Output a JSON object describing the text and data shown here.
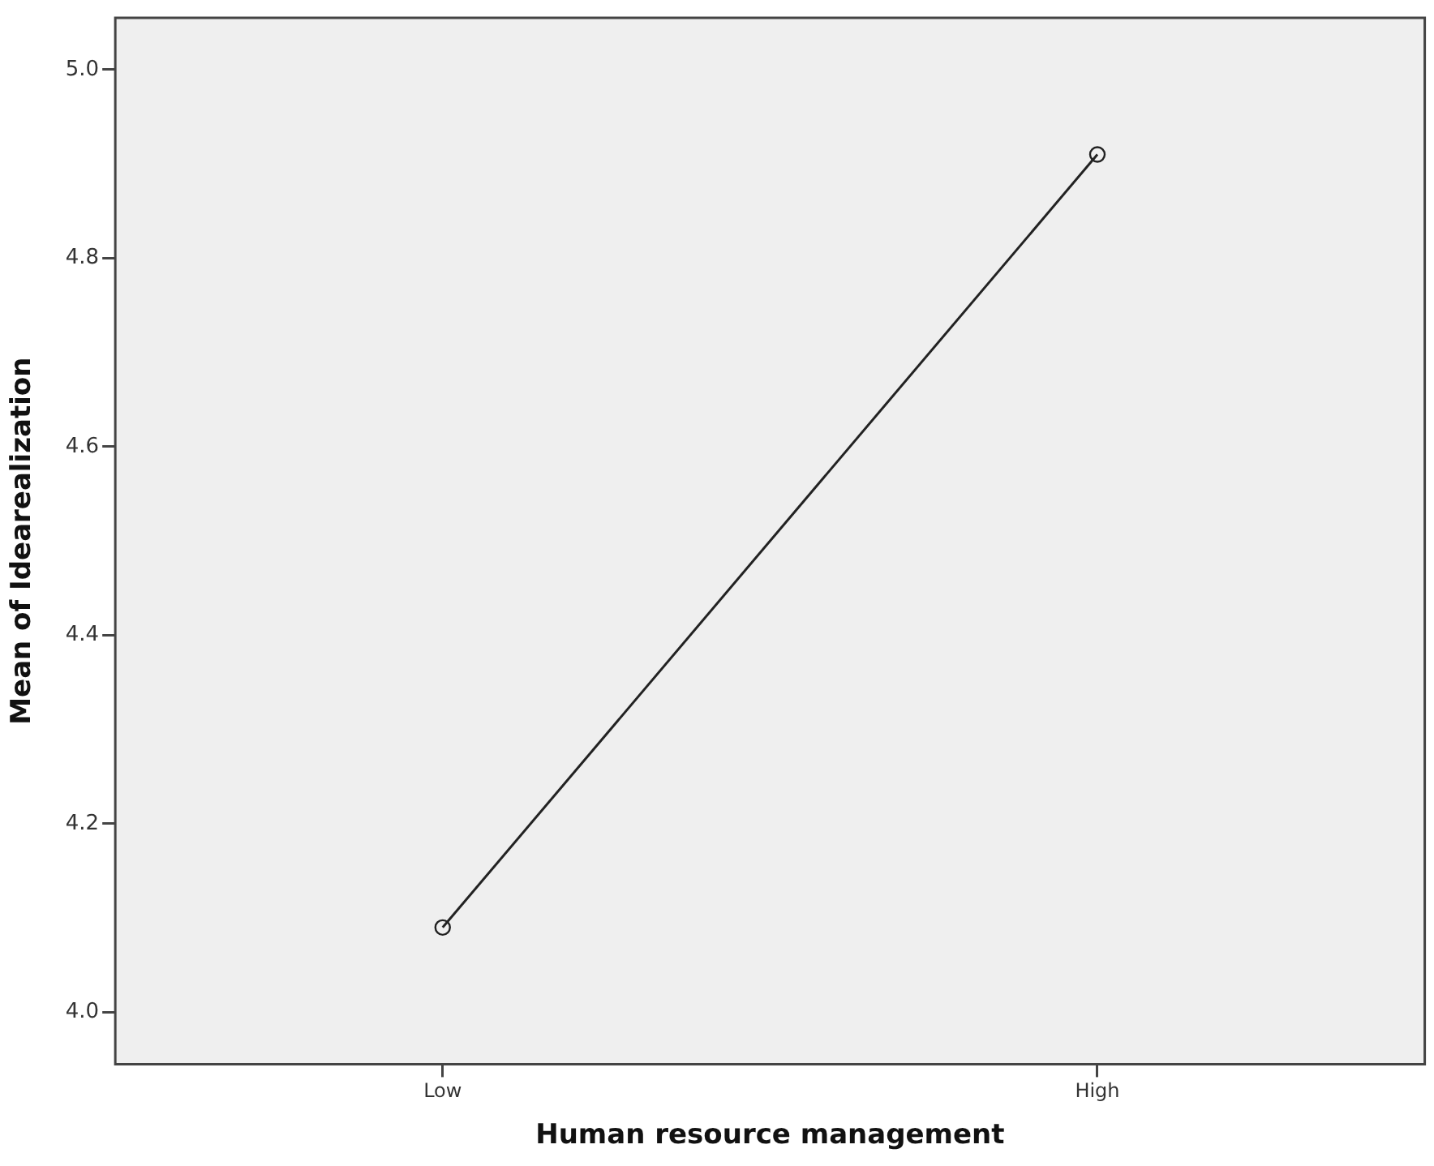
{
  "chart_data": {
    "type": "line",
    "xlabel": "Human resource management",
    "ylabel": "Mean of Idearealization",
    "categories": [
      "Low",
      "High"
    ],
    "series": [
      {
        "color": "#222222",
        "values": [
          4.09,
          4.91
        ]
      }
    ],
    "ylim": [
      3.945,
      5.055
    ],
    "yticks": [
      {
        "value": 4.0,
        "label": "4.0"
      },
      {
        "value": 4.2,
        "label": "4.2"
      },
      {
        "value": 4.4,
        "label": "4.4"
      },
      {
        "value": 4.6,
        "label": "4.6"
      },
      {
        "value": 4.8,
        "label": "4.8"
      },
      {
        "value": 5.0,
        "label": "5.0"
      }
    ],
    "grid": false,
    "marker": "circle",
    "line_style": "solid"
  }
}
